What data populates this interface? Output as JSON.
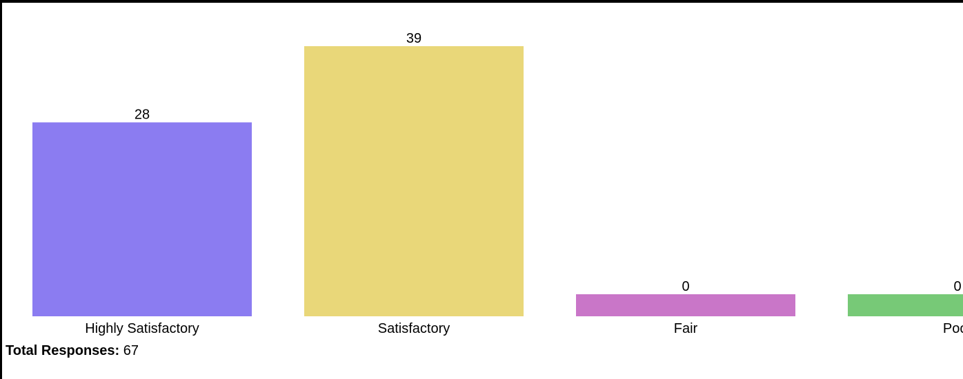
{
  "chart_data": {
    "type": "bar",
    "categories": [
      "Highly Satisfactory",
      "Satisfactory",
      "Fair",
      "Poor"
    ],
    "values": [
      28,
      39,
      0,
      0
    ],
    "value_labels": [
      "28",
      "39",
      "0",
      "0"
    ],
    "colors": [
      "#8b7cf1",
      "#e9d779",
      "#c976c8",
      "#77c977"
    ],
    "ylim": [
      0,
      39
    ],
    "grid": false,
    "title": "",
    "xlabel": "",
    "ylabel": ""
  },
  "footer": {
    "total_label": "Total Responses:",
    "total_value": "67"
  }
}
